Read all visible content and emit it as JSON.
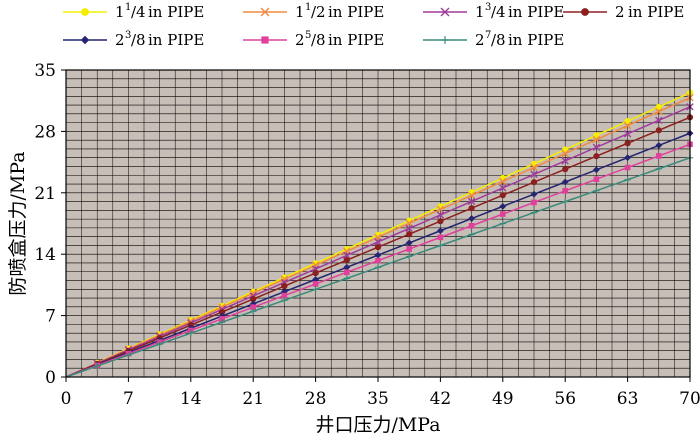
{
  "chart_data": {
    "type": "line",
    "title": "",
    "xlabel": "井口压力/MPa",
    "ylabel": "防喷盒压力/MPa",
    "xlim": [
      0,
      70
    ],
    "ylim": [
      0,
      35
    ],
    "xticks": [
      0,
      7,
      14,
      21,
      28,
      35,
      42,
      49,
      56,
      63,
      70
    ],
    "yticks": [
      0,
      7,
      14,
      21,
      28,
      35
    ],
    "grid": true,
    "plot_background": "#c8beb8",
    "legend_position": "top",
    "series": [
      {
        "name": "1¹/₄ in PIPE",
        "whole": "1",
        "sup": "1",
        "sub": "4",
        "color": "#f5ee00",
        "marker": "circle",
        "slope": 0.463
      },
      {
        "name": "1¹/₂ in PIPE",
        "whole": "1",
        "sup": "1",
        "sub": "2",
        "color": "#f08a40",
        "marker": "x",
        "slope": 0.455
      },
      {
        "name": "1³/₄ in PIPE",
        "whole": "1",
        "sup": "3",
        "sub": "4",
        "color": "#a03c9c",
        "marker": "x",
        "slope": 0.44
      },
      {
        "name": "2 in PIPE",
        "whole": "2",
        "sup": "",
        "sub": "",
        "color": "#8b2020",
        "marker": "circle",
        "slope": 0.423
      },
      {
        "name": "2³/₈ in PIPE",
        "whole": "2",
        "sup": "3",
        "sub": "8",
        "color": "#252570",
        "marker": "diamond",
        "slope": 0.397
      },
      {
        "name": "2⁵/₈ in PIPE",
        "whole": "2",
        "sup": "5",
        "sub": "8",
        "color": "#e0409c",
        "marker": "square",
        "slope": 0.379
      },
      {
        "name": "2⁷/₈ in PIPE",
        "whole": "2",
        "sup": "7",
        "sub": "8",
        "color": "#3a8a7a",
        "marker": "plus",
        "slope": 0.357
      }
    ],
    "x_points": [
      0,
      3.5,
      7,
      10.5,
      14,
      17.5,
      21,
      24.5,
      28,
      31.5,
      35,
      38.5,
      42,
      45.5,
      49,
      52.5,
      56,
      59.5,
      63,
      66.5,
      70
    ]
  }
}
